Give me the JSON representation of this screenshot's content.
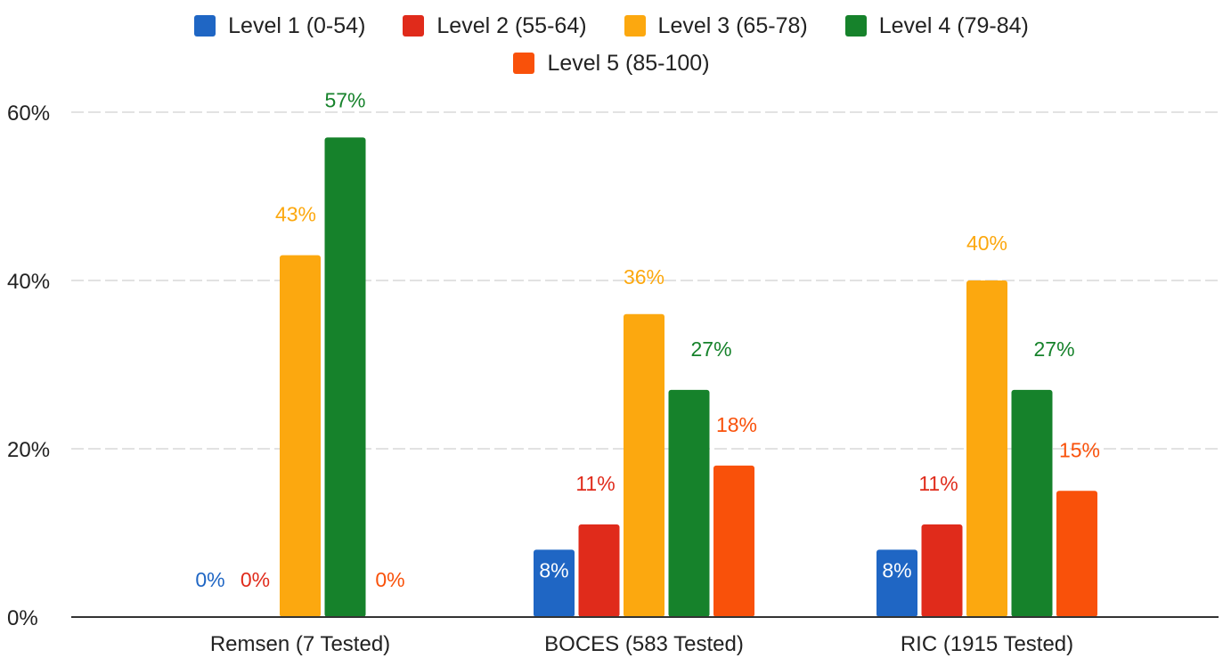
{
  "chart_data": {
    "type": "bar",
    "categories": [
      "Remsen (7 Tested)",
      "BOCES (583 Tested)",
      "RIC (1915 Tested)"
    ],
    "series": [
      {
        "name": "Level 1 (0-54)",
        "color": "#1f66c4",
        "values": [
          0,
          8,
          8
        ],
        "labels": [
          "0%",
          "8%",
          "8%"
        ]
      },
      {
        "name": "Level 2 (55-64)",
        "color": "#e02b1b",
        "values": [
          0,
          11,
          11
        ],
        "labels": [
          "0%",
          "11%",
          "11%"
        ]
      },
      {
        "name": "Level 3 (65-78)",
        "color": "#fca80f",
        "values": [
          43,
          36,
          40
        ],
        "labels": [
          "43%",
          "36%",
          "40%"
        ]
      },
      {
        "name": "Level 4 (79-84)",
        "color": "#16822b",
        "values": [
          57,
          27,
          27
        ],
        "labels": [
          "57%",
          "27%",
          "27%"
        ]
      },
      {
        "name": "Level 5 (85-100)",
        "color": "#f9510a",
        "values": [
          0,
          18,
          15
        ],
        "labels": [
          "0%",
          "18%",
          "15%"
        ]
      }
    ],
    "yticks": [
      "0%",
      "20%",
      "40%",
      "60%"
    ],
    "ytick_values": [
      0,
      20,
      40,
      60
    ],
    "ylim": [
      0,
      60
    ],
    "grid": true,
    "legend_position": "top"
  }
}
